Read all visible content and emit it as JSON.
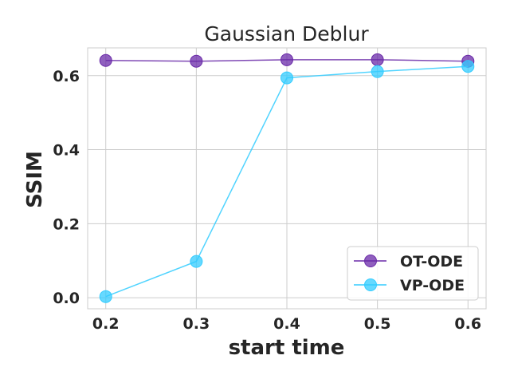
{
  "chart_data": {
    "type": "line",
    "title": "Gaussian Deblur",
    "xlabel": "start time",
    "ylabel": "SSIM",
    "x": [
      0.2,
      0.3,
      0.4,
      0.5,
      0.6
    ],
    "xticks": [
      "0.2",
      "0.3",
      "0.4",
      "0.5",
      "0.6"
    ],
    "yticks": [
      "0.0",
      "0.2",
      "0.4",
      "0.6"
    ],
    "xlim": [
      0.18,
      0.62
    ],
    "ylim": [
      -0.03,
      0.675
    ],
    "grid": true,
    "legend_position": "bottom-right",
    "series": [
      {
        "name": "OT-ODE",
        "color": "#6a2aa8",
        "values": [
          0.641,
          0.639,
          0.643,
          0.643,
          0.639
        ]
      },
      {
        "name": "VP-ODE",
        "color": "#33ccff",
        "values": [
          0.003,
          0.098,
          0.594,
          0.611,
          0.625
        ]
      }
    ]
  }
}
